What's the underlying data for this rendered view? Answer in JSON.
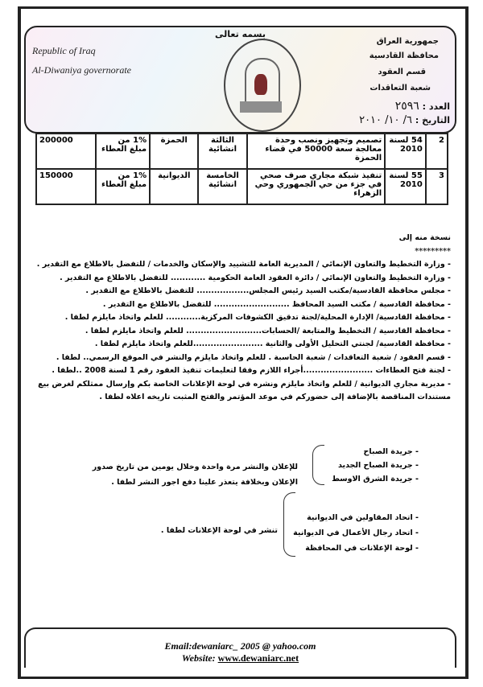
{
  "header": {
    "basmala": "بسمه تعالى",
    "en_line1": "Republic of Iraq",
    "en_line2": "Al-Diwaniya governorate",
    "ar_lines": [
      "جمهورية العراق",
      "محافظة القادسية",
      "قسم العقود",
      "شعبة التعاقدات"
    ],
    "number_label": "العدد :",
    "number_value": "٢٥٩٦",
    "date_label": "التاريخ :",
    "date_value": "٦/ ١٠/ ٢٠١٠"
  },
  "table": {
    "rows": [
      {
        "no": "2",
        "tender": "54 لسنة 2010",
        "description": "تصميم وتجهيز ونصب وحدة معالجة سعة 50000 في قضاء الحمزة",
        "category": "الثالثة انشائية",
        "location": "الحمزة",
        "guarantee": "1% من مبلغ العطاء",
        "amount": "200000"
      },
      {
        "no": "3",
        "tender": "55 لسنة 2010",
        "description": "تنفيذ شبكة مجاري صرف صحي في جزء من حي الجمهوري وحي الزهراء",
        "category": "الخامسة انشائية",
        "location": "الديوانية",
        "guarantee": "1% من مبلغ العطاء",
        "amount": "150000"
      }
    ]
  },
  "copies": {
    "title": "نسخة منه إلى",
    "stars": "*********",
    "items": [
      "- وزارة التخطيط والتعاون الإنمائي / المديرية العامة للتشييد والإسكان والخدمات / للتفضل بالاطلاع مع التقدير .",
      "- وزارة التخطيط والتعاون الإنمائي / دائرة العقود العامة الحكومية ............ للتفضل بالاطلاع مع التقدير .",
      "- مجلس محافظة القادسية/مكتب السيد رئيس المجلس.................. للتفضل بالاطلاع مع التقدير .",
      "- محافظة القادسية / مكتب السيد المحافظ .......................... للتفضل بالاطلاع مع التقدير .",
      "- محافظة القادسية/ الإدارة المحلية/لجنة تدقيق الكشوفات المركزية............ للعلم واتخاذ مايلزم لطفا .",
      "- محافظة القادسية / التخطيط والمتابعة /الحسابات.......................... للعلم واتخاذ مايلزم لطفا .",
      "- محافظة القادسية/ لجنتي التحليل الأولى والثانية ........................للعلم واتخاذ مايلزم لطفا .",
      "- قسم العقود / شعبة التعاقدات / شعبة الحاسبة      . للعلم واتخاذ مايلزم والنشر في الموقع الرسمي.. لطفا .",
      "- لجنة فتح العطاءات ........................أجراء اللازم وفقا لتعليمات تنفيذ العقود رقم 1 لسنة 2008 ..لطفا .",
      "- مديرية مجاري الديوانية / للعلم واتخاذ مايلزم ونشره في لوحة الإعلانات الخاصة بكم وإرسال ممثلكم لغرض بيع",
      "مستندات المناقصة بالإضافة إلى حضوركم في موعد المؤتمر والفتح المثبت تاريخه اعلاه لطفا ."
    ]
  },
  "newspapers": {
    "items": [
      "- جريدة الصباح",
      "- جريدة الصباح الجديد",
      "- جريدة الشرق الاوسط"
    ],
    "note1": "للإعلان والنشر مرة واحدة وخلال يومين من تاريخ صدور",
    "note2": "الإعلان وبخلافة يتعذر علينا دفع اجور النشر لطفا ."
  },
  "boards": {
    "items": [
      "- اتحاد المقاولين في الديوانية",
      "- اتحاد رجال الأعمال في الديوانية",
      "- لوحة الإعلانات في المحافظة"
    ],
    "note": "تنشر في لوحة الإعلانات لطفا ."
  },
  "footer": {
    "email": "Email:dewaniarc_ 2005 @ yahoo.com",
    "website_label": "Website:",
    "website": "www.dewaniarc.net"
  }
}
